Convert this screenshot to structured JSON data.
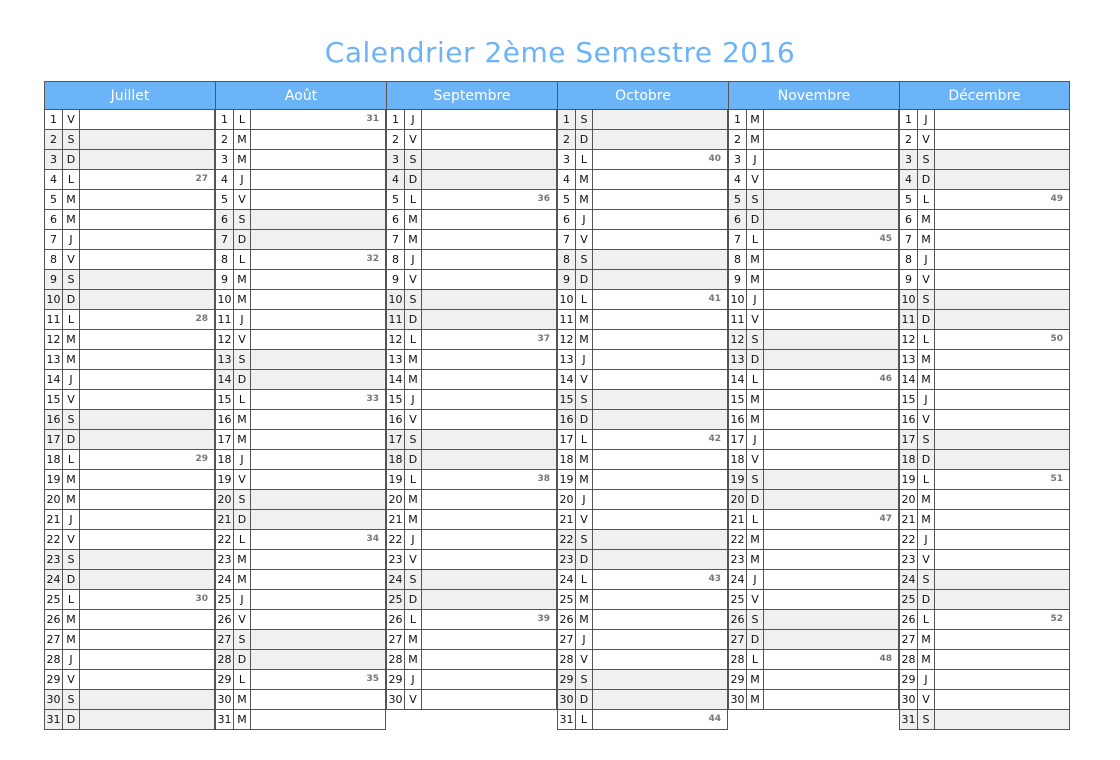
{
  "title": "Calendrier 2ème Semestre 2016",
  "colors": {
    "header": "#6cb4f8",
    "title": "#6cb4f7",
    "weekend": "#f0f0f0"
  },
  "months": [
    {
      "name": "Juillet",
      "weekdays": [
        "V",
        "S",
        "D",
        "L",
        "M",
        "M",
        "J",
        "V",
        "S",
        "D",
        "L",
        "M",
        "M",
        "J",
        "V",
        "S",
        "D",
        "L",
        "M",
        "M",
        "J",
        "V",
        "S",
        "D",
        "L",
        "M",
        "M",
        "J",
        "V",
        "S",
        "D"
      ],
      "week_numbers": {
        "4": "27",
        "11": "28",
        "18": "29",
        "25": "30"
      }
    },
    {
      "name": "Août",
      "weekdays": [
        "L",
        "M",
        "M",
        "J",
        "V",
        "S",
        "D",
        "L",
        "M",
        "M",
        "J",
        "V",
        "S",
        "D",
        "L",
        "M",
        "M",
        "J",
        "V",
        "S",
        "D",
        "L",
        "M",
        "M",
        "J",
        "V",
        "S",
        "D",
        "L",
        "M",
        "M"
      ],
      "week_numbers": {
        "1": "31",
        "8": "32",
        "15": "33",
        "22": "34",
        "29": "35"
      }
    },
    {
      "name": "Septembre",
      "weekdays": [
        "J",
        "V",
        "S",
        "D",
        "L",
        "M",
        "M",
        "J",
        "V",
        "S",
        "D",
        "L",
        "M",
        "M",
        "J",
        "V",
        "S",
        "D",
        "L",
        "M",
        "M",
        "J",
        "V",
        "S",
        "D",
        "L",
        "M",
        "M",
        "J",
        "V"
      ],
      "week_numbers": {
        "5": "36",
        "12": "37",
        "19": "38",
        "26": "39"
      }
    },
    {
      "name": "Octobre",
      "weekdays": [
        "S",
        "D",
        "L",
        "M",
        "M",
        "J",
        "V",
        "S",
        "D",
        "L",
        "M",
        "M",
        "J",
        "V",
        "S",
        "D",
        "L",
        "M",
        "M",
        "J",
        "V",
        "S",
        "D",
        "L",
        "M",
        "M",
        "J",
        "V",
        "S",
        "D",
        "L"
      ],
      "week_numbers": {
        "3": "40",
        "10": "41",
        "17": "42",
        "24": "43",
        "31": "44"
      }
    },
    {
      "name": "Novembre",
      "weekdays": [
        "M",
        "M",
        "J",
        "V",
        "S",
        "D",
        "L",
        "M",
        "M",
        "J",
        "V",
        "S",
        "D",
        "L",
        "M",
        "M",
        "J",
        "V",
        "S",
        "D",
        "L",
        "M",
        "M",
        "J",
        "V",
        "S",
        "D",
        "L",
        "M",
        "M"
      ],
      "week_numbers": {
        "7": "45",
        "14": "46",
        "21": "47",
        "28": "48"
      }
    },
    {
      "name": "Décembre",
      "weekdays": [
        "J",
        "V",
        "S",
        "D",
        "L",
        "M",
        "M",
        "J",
        "V",
        "S",
        "D",
        "L",
        "M",
        "M",
        "J",
        "V",
        "S",
        "D",
        "L",
        "M",
        "M",
        "J",
        "V",
        "S",
        "D",
        "L",
        "M",
        "M",
        "J",
        "V",
        "S"
      ],
      "week_numbers": {
        "5": "49",
        "12": "50",
        "19": "51",
        "26": "52"
      }
    }
  ]
}
